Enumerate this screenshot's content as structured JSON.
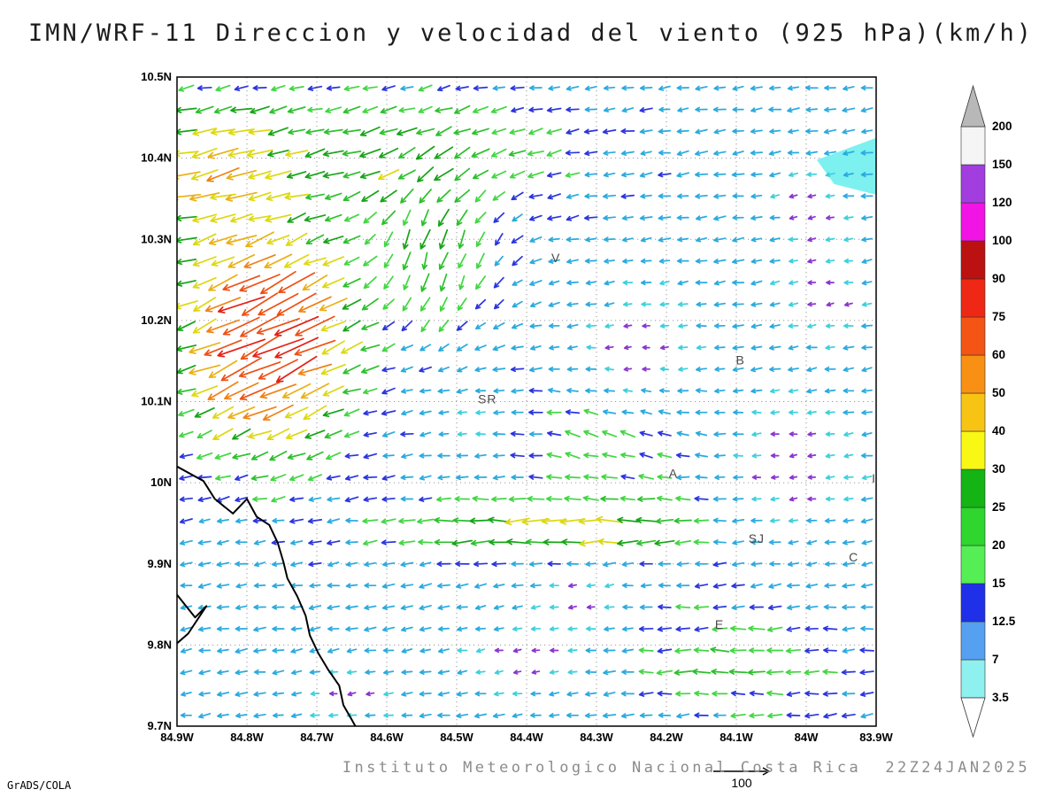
{
  "title": "IMN/WRF-11 Direccion y velocidad del viento (925 hPa)(km/h)",
  "footer": {
    "attribution": "Instituto Meteorologico Nacional Costa Rica  22Z24JAN2025",
    "credit": "GrADS/COLA",
    "ref_vector_label": "100"
  },
  "chart_data": {
    "type": "vector_field_map",
    "title": "IMN/WRF-11 Direccion y velocidad del viento (925 hPa)(km/h)",
    "units": "km/h",
    "level": "925 hPa",
    "valid_time": "22Z24JAN2025",
    "lon_range": [
      -84.9,
      -83.9
    ],
    "lat_range": [
      9.7,
      10.5
    ],
    "x_ticks": [
      "84.9W",
      "84.8W",
      "84.7W",
      "84.6W",
      "84.5W",
      "84.4W",
      "84.3W",
      "84.2W",
      "84.1W",
      "84W",
      "83.9W"
    ],
    "y_ticks": [
      "9.7N",
      "9.8N",
      "9.9N",
      "10N",
      "10.1N",
      "10.2N",
      "10.3N",
      "10.4N",
      "10.5N"
    ],
    "grid": "dotted",
    "colorbar": {
      "levels": [
        3.5,
        7,
        12.5,
        15,
        20,
        25,
        30,
        40,
        50,
        60,
        75,
        90,
        100,
        120,
        150,
        200
      ],
      "band_colors": [
        "#8ff0f0",
        "#55a0f0",
        "#2030e8",
        "#55ee55",
        "#2ed62e",
        "#14b414",
        "#f8f814",
        "#f8c414",
        "#f89014",
        "#f55514",
        "#ee2814",
        "#bb1111",
        "#f214e4",
        "#a23ee0",
        "#f5f5f5"
      ],
      "below_color": "#ffffff",
      "above_color": "#b8b8b8"
    },
    "map": {
      "coastlines": [
        [
          [
            -84.9,
            10.02
          ],
          [
            -84.862,
            10.002
          ],
          [
            -84.846,
            9.98
          ],
          [
            -84.82,
            9.962
          ],
          [
            -84.8,
            9.98
          ],
          [
            -84.786,
            9.958
          ],
          [
            -84.768,
            9.948
          ],
          [
            -84.756,
            9.926
          ],
          [
            -84.748,
            9.903
          ],
          [
            -84.742,
            9.882
          ],
          [
            -84.728,
            9.86
          ],
          [
            -84.716,
            9.836
          ],
          [
            -84.71,
            9.812
          ],
          [
            -84.698,
            9.79
          ],
          [
            -84.684,
            9.77
          ],
          [
            -84.668,
            9.75
          ],
          [
            -84.662,
            9.726
          ],
          [
            -84.65,
            9.708
          ],
          [
            -84.645,
            9.7
          ]
        ],
        [
          [
            -84.9,
            9.862
          ],
          [
            -84.874,
            9.834
          ],
          [
            -84.858,
            9.848
          ],
          [
            -84.884,
            9.814
          ],
          [
            -84.9,
            9.802
          ]
        ]
      ],
      "cities": [
        {
          "label": "V",
          "lon": -84.358,
          "lat": 10.272
        },
        {
          "label": "B",
          "lon": -84.094,
          "lat": 10.146
        },
        {
          "label": "SR",
          "lon": -84.456,
          "lat": 10.098
        },
        {
          "label": "A",
          "lon": -84.19,
          "lat": 10.006
        },
        {
          "label": "SJ",
          "lon": -84.071,
          "lat": 9.926
        },
        {
          "label": "C",
          "lon": -83.932,
          "lat": 9.903
        },
        {
          "label": "E",
          "lon": -84.124,
          "lat": 9.82
        },
        {
          "label": "I",
          "lon": -83.903,
          "lat": 10.0
        }
      ],
      "shaded_region": {
        "color": "#7df0f0",
        "points": [
          [
            -83.985,
            10.398
          ],
          [
            -83.9,
            10.425
          ],
          [
            -83.9,
            10.355
          ],
          [
            -83.96,
            10.368
          ]
        ]
      }
    },
    "field": {
      "nx": 38,
      "ny": 30,
      "seed": 7,
      "scale": 0.62,
      "min_len": 6,
      "max_len": 60,
      "calm_threshold": 4.5,
      "calm_color": "#8a35d0",
      "arrow_colors": [
        "#3cd0dc",
        "#2aaade",
        "#2a35dd",
        "#42d642",
        "#2cc02c",
        "#16a416",
        "#ddd810",
        "#eab014",
        "#f08214",
        "#ee5014",
        "#e62014",
        "#c01212",
        "#ee14dc",
        "#9a40e0",
        "#cccccc"
      ],
      "base": {
        "u": -10.5,
        "v": -1.5
      },
      "features": [
        {
          "op": "add",
          "cx": 0.13,
          "cy": 0.6,
          "sx": 0.105,
          "sy": 0.14,
          "du": -65,
          "dv": -35
        },
        {
          "op": "add",
          "cx": 0.05,
          "cy": 0.86,
          "sx": 0.1,
          "sy": 0.1,
          "du": -30,
          "dv": -8
        },
        {
          "op": "add",
          "cx": 0.37,
          "cy": 0.74,
          "sx": 0.1,
          "sy": 0.13,
          "du": 4,
          "dv": -22
        },
        {
          "op": "add",
          "cx": 0.32,
          "cy": 0.88,
          "sx": 0.2,
          "sy": 0.09,
          "du": -15,
          "dv": -5
        },
        {
          "op": "add",
          "cx": 0.55,
          "cy": 0.305,
          "sx": 0.2,
          "sy": 0.038,
          "du": -27,
          "dv": 0
        },
        {
          "op": "add",
          "cx": 0.62,
          "cy": 0.44,
          "sx": 0.14,
          "sy": 0.1,
          "du": -7,
          "dv": 6
        },
        {
          "op": "add",
          "cx": 0.8,
          "cy": 0.1,
          "sx": 0.15,
          "sy": 0.08,
          "du": -10,
          "dv": 2
        },
        {
          "op": "mul",
          "cx": 0.66,
          "cy": 0.58,
          "sx": 0.1,
          "sy": 0.1,
          "f": 0.22
        },
        {
          "op": "mul",
          "cx": 0.88,
          "cy": 0.4,
          "sx": 0.1,
          "sy": 0.13,
          "f": 0.25
        },
        {
          "op": "mul",
          "cx": 0.93,
          "cy": 0.67,
          "sx": 0.07,
          "sy": 0.09,
          "f": 0.3
        },
        {
          "op": "mul",
          "cx": 0.9,
          "cy": 0.8,
          "sx": 0.06,
          "sy": 0.07,
          "f": 0.3
        },
        {
          "op": "mul",
          "cx": 0.5,
          "cy": 0.1,
          "sx": 0.11,
          "sy": 0.07,
          "f": 0.3
        },
        {
          "op": "mul",
          "cx": 0.24,
          "cy": 0.05,
          "sx": 0.08,
          "sy": 0.06,
          "f": 0.35
        },
        {
          "op": "mul",
          "cx": 0.58,
          "cy": 0.2,
          "sx": 0.07,
          "sy": 0.06,
          "f": 0.35
        },
        {
          "op": "mul",
          "cx": 0.42,
          "cy": 0.47,
          "sx": 0.045,
          "sy": 0.05,
          "f": 0.4
        }
      ],
      "jitter": {
        "dir_deg": 9,
        "speed_frac": 0.18
      }
    }
  }
}
